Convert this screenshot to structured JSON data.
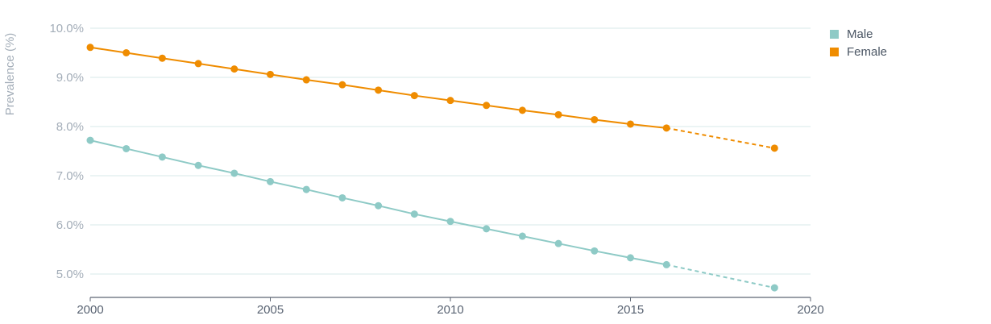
{
  "chart_data": {
    "type": "line",
    "ylabel": "Prevalence (%)",
    "xlabel": "",
    "xlim": [
      2000,
      2020
    ],
    "ylim": [
      4.5,
      10.0
    ],
    "x_ticks": [
      "2000",
      "2005",
      "2010",
      "2015",
      "2020"
    ],
    "y_ticks": [
      "5.0%",
      "6.0%",
      "7.0%",
      "8.0%",
      "9.0%",
      "10.0%"
    ],
    "grid": true,
    "legend_position": "top-right",
    "colors": {
      "male": "#8ecac6",
      "female": "#ef8c00",
      "grid": "#d7e9e9",
      "axis": "#5d6673"
    },
    "series": [
      {
        "name": "Male",
        "color": "#8ecac6",
        "x": [
          2000,
          2001,
          2002,
          2003,
          2004,
          2005,
          2006,
          2007,
          2008,
          2009,
          2010,
          2011,
          2012,
          2013,
          2014,
          2015,
          2016,
          2019
        ],
        "values": [
          7.72,
          7.55,
          7.38,
          7.21,
          7.05,
          6.88,
          6.72,
          6.55,
          6.39,
          6.22,
          6.07,
          5.92,
          5.77,
          5.62,
          5.47,
          5.33,
          5.19,
          4.72
        ],
        "projection_from_index": 16
      },
      {
        "name": "Female",
        "color": "#ef8c00",
        "x": [
          2000,
          2001,
          2002,
          2003,
          2004,
          2005,
          2006,
          2007,
          2008,
          2009,
          2010,
          2011,
          2012,
          2013,
          2014,
          2015,
          2016,
          2019
        ],
        "values": [
          9.61,
          9.5,
          9.39,
          9.28,
          9.17,
          9.06,
          8.95,
          8.85,
          8.74,
          8.63,
          8.53,
          8.43,
          8.33,
          8.24,
          8.14,
          8.05,
          7.97,
          7.56
        ],
        "projection_from_index": 16
      }
    ]
  }
}
